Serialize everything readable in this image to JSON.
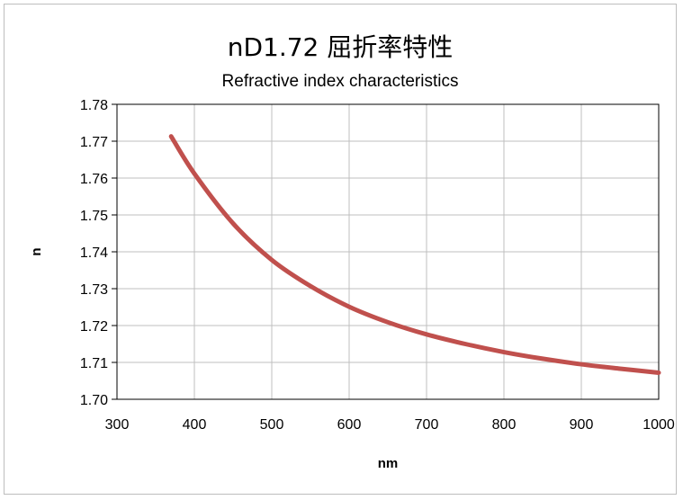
{
  "chart_data": {
    "type": "line",
    "title": "nD1.72 屈折率特性",
    "subtitle": "Refractive index characteristics",
    "xlabel": "nm",
    "ylabel": "n",
    "xlim": [
      300,
      1000
    ],
    "ylim": [
      1.7,
      1.78
    ],
    "x_ticks": [
      "300",
      "400",
      "500",
      "600",
      "700",
      "800",
      "900",
      "1000"
    ],
    "y_ticks": [
      "1.70",
      "1.71",
      "1.72",
      "1.73",
      "1.74",
      "1.75",
      "1.76",
      "1.77",
      "1.78"
    ],
    "grid": true,
    "legend": "none",
    "line_color": "#c0504d",
    "series": [
      {
        "x": [
          370,
          400,
          450,
          500,
          550,
          600,
          650,
          700,
          750,
          800,
          850,
          900,
          950,
          1000
        ],
        "values": [
          1.7713,
          1.7612,
          1.7477,
          1.7378,
          1.7307,
          1.7251,
          1.7209,
          1.7176,
          1.715,
          1.7128,
          1.711,
          1.7095,
          1.7083,
          1.7072
        ]
      }
    ]
  }
}
